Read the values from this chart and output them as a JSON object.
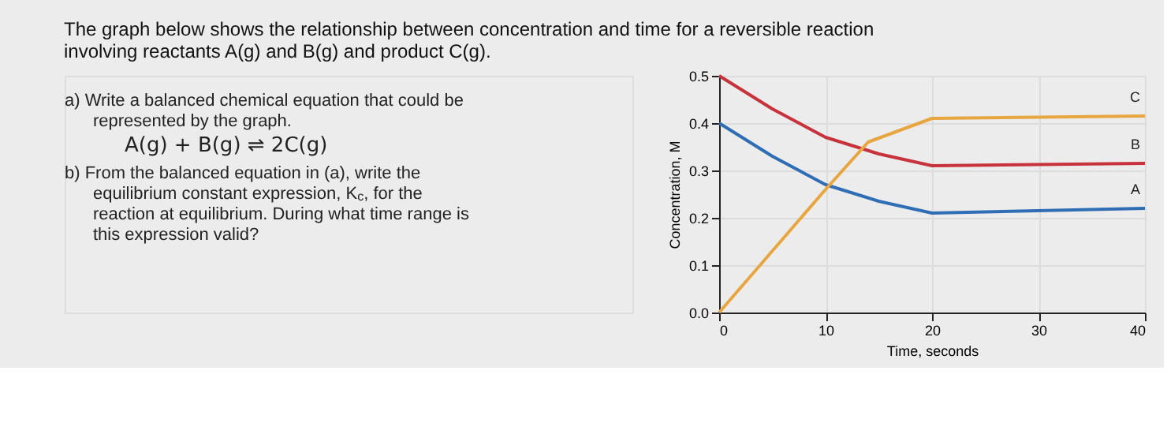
{
  "chart_data": {
    "type": "line",
    "title": "The graph below shows the relationship between concentration and time for a reversible reaction involving reactants A(g) and B(g) and product C(g).",
    "xlabel": "Time, seconds",
    "ylabel": "Concentration, M",
    "annotations": [
      "a) Write a balanced chemical equation that could be represented by the graph.",
      "A(g) + B(g) ⇌ 2C(g)",
      "b) From the balanced equation in (a), write the equilibrium constant expression, K$_{c}$, for the reaction at equilibrium. During what time range is this expression valid?"
    ],
    "x": [
      0,
      5,
      10,
      15,
      20,
      40
    ],
    "series": [
      {
        "name": "A",
        "color": "#2f6db5",
        "values": [
          0.4,
          0.33,
          0.27,
          0.235,
          0.21,
          0.22
        ]
      },
      {
        "name": "B",
        "color": "#c8323c",
        "values": [
          0.5,
          0.43,
          0.37,
          0.335,
          0.31,
          0.315
        ]
      },
      {
        "name": "C",
        "color": "#e8a640",
        "x": [
          0,
          5,
          10,
          14,
          20,
          40
        ],
        "values": [
          0,
          0.13,
          0.26,
          0.36,
          0.41,
          0.415
        ]
      }
    ],
    "xlim": [
      0,
      40
    ],
    "xticks": [
      0,
      10,
      20,
      30,
      40
    ],
    "ylim": [
      0,
      0.5
    ],
    "yticks": [
      {
        "value": 0,
        "label": "0.0"
      },
      0.1,
      0.2,
      0.3,
      0.4,
      0.5
    ],
    "grid": true,
    "legend": false,
    "marker": "none",
    "line_style": "solid"
  }
}
